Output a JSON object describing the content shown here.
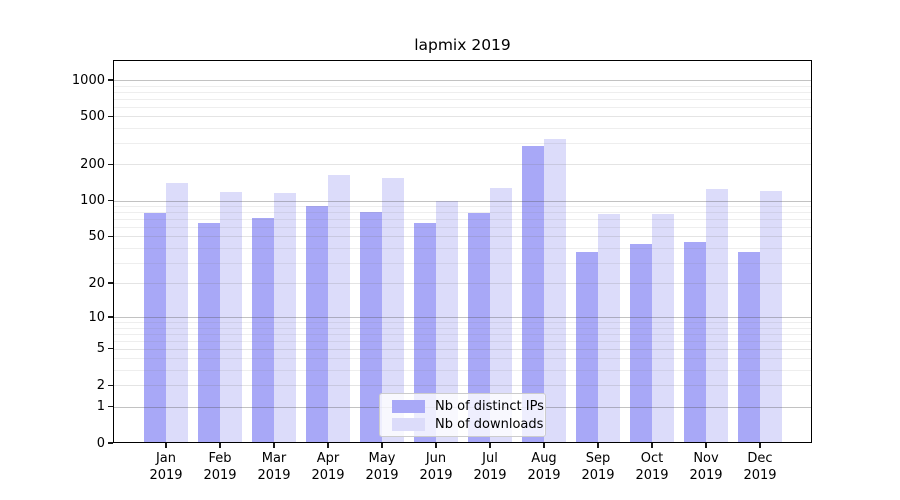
{
  "chart_data": {
    "type": "bar",
    "title": "lapmix 2019",
    "categories": [
      "Jan",
      "Feb",
      "Mar",
      "Apr",
      "May",
      "Jun",
      "Jul",
      "Aug",
      "Sep",
      "Oct",
      "Nov",
      "Dec"
    ],
    "year": "2019",
    "series": [
      {
        "name": "Nb of distinct IPs",
        "color": "#a8a8f7",
        "values": [
          78,
          65,
          72,
          90,
          80,
          65,
          79,
          285,
          37,
          43,
          45,
          37
        ]
      },
      {
        "name": "Nb of downloads",
        "color": "#dcdcfa",
        "values": [
          140,
          118,
          116,
          163,
          155,
          100,
          128,
          325,
          77,
          77,
          125,
          120
        ]
      }
    ],
    "yscale": "log1p",
    "ylim": [
      0,
      1465
    ],
    "yticks": [
      0,
      1,
      2,
      5,
      10,
      20,
      50,
      100,
      200,
      500,
      1000
    ],
    "minor_yticks": [
      3,
      4,
      6,
      7,
      8,
      9,
      30,
      40,
      60,
      70,
      80,
      90,
      300,
      400,
      600,
      700,
      800,
      900
    ],
    "grid": true,
    "legend_position": "lower center"
  },
  "colors": {
    "background": "#ffffff",
    "spine": "#000000",
    "grid_major": "#c2c2c2",
    "grid_minor": "#ededed",
    "text": "#000000"
  }
}
